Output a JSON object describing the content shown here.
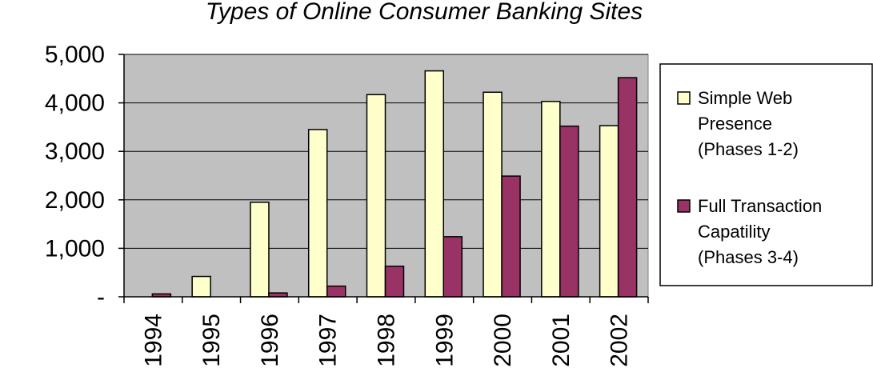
{
  "chart_data": {
    "type": "bar",
    "title": "Types of Online Consumer Banking Sites",
    "categories": [
      "1994",
      "1995",
      "1996",
      "1997",
      "1998",
      "1999",
      "2000",
      "2001",
      "2002"
    ],
    "ylim": [
      0,
      5000
    ],
    "yticks": [
      {
        "value": 0,
        "label": "-"
      },
      {
        "value": 1000,
        "label": "1,000"
      },
      {
        "value": 2000,
        "label": "2,000"
      },
      {
        "value": 3000,
        "label": "3,000"
      },
      {
        "value": 4000,
        "label": "4,000"
      },
      {
        "value": 5000,
        "label": "5,000"
      }
    ],
    "grid": true,
    "legend_position": "right",
    "series": [
      {
        "name_lines": [
          "Simple Web",
          "Presence",
          "(Phases 1-2)"
        ],
        "color": "#ffffcc",
        "values": [
          0,
          420,
          1950,
          3450,
          4170,
          4660,
          4220,
          4030,
          3530
        ]
      },
      {
        "name_lines": [
          "Full Transaction",
          "Capatility",
          "(Phases 3-4)"
        ],
        "color": "#993366",
        "values": [
          60,
          0,
          80,
          220,
          630,
          1240,
          2490,
          3520,
          4520
        ]
      }
    ],
    "plot_background": "#c0c0c0"
  }
}
